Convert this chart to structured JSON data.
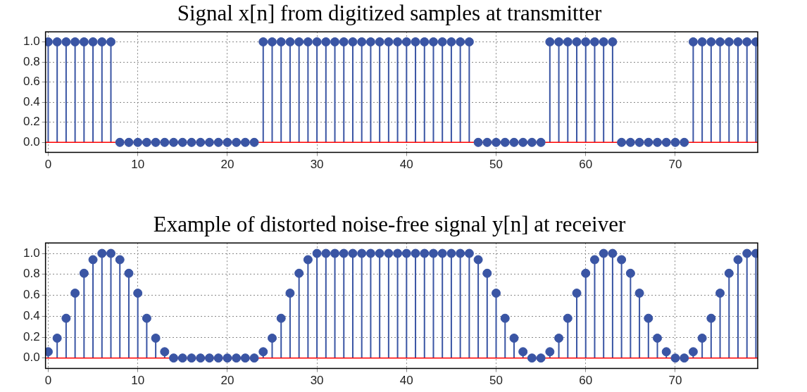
{
  "chart_data": [
    {
      "type": "lollipop",
      "title": "Signal x[n] from digitized samples at transmitter",
      "x": [
        0,
        1,
        2,
        3,
        4,
        5,
        6,
        7,
        8,
        9,
        10,
        11,
        12,
        13,
        14,
        15,
        16,
        17,
        18,
        19,
        20,
        21,
        22,
        23,
        24,
        25,
        26,
        27,
        28,
        29,
        30,
        31,
        32,
        33,
        34,
        35,
        36,
        37,
        38,
        39,
        40,
        41,
        42,
        43,
        44,
        45,
        46,
        47,
        48,
        49,
        50,
        51,
        52,
        53,
        54,
        55,
        56,
        57,
        58,
        59,
        60,
        61,
        62,
        63,
        64,
        65,
        66,
        67,
        68,
        69,
        70,
        71,
        72,
        73,
        74,
        75,
        76,
        77,
        78,
        79
      ],
      "series": [
        {
          "color": "#3a55a4",
          "values": [
            1,
            1,
            1,
            1,
            1,
            1,
            1,
            1,
            0,
            0,
            0,
            0,
            0,
            0,
            0,
            0,
            0,
            0,
            0,
            0,
            0,
            0,
            0,
            0,
            1,
            1,
            1,
            1,
            1,
            1,
            1,
            1,
            1,
            1,
            1,
            1,
            1,
            1,
            1,
            1,
            1,
            1,
            1,
            1,
            1,
            1,
            1,
            1,
            0,
            0,
            0,
            0,
            0,
            0,
            0,
            0,
            1,
            1,
            1,
            1,
            1,
            1,
            1,
            1,
            0,
            0,
            0,
            0,
            0,
            0,
            0,
            0,
            1,
            1,
            1,
            1,
            1,
            1,
            1,
            1
          ]
        }
      ],
      "xlim": [
        -0.3,
        79.2
      ],
      "ylim": [
        -0.1,
        1.1
      ],
      "xticks": [
        0,
        10,
        20,
        30,
        40,
        50,
        60,
        70
      ],
      "yticks": [
        {
          "value": 0,
          "label": "0.0"
        },
        {
          "value": 0.2,
          "label": "0.2"
        },
        {
          "value": 0.4,
          "label": "0.4"
        },
        {
          "value": 0.6,
          "label": "0.6"
        },
        {
          "value": 0.8,
          "label": "0.8"
        },
        {
          "value": 1,
          "label": "1.0"
        }
      ],
      "grid": true,
      "legend": false,
      "marker": "circle",
      "ref_lines": [
        {
          "axis": "y",
          "value": 0,
          "color": "#ff0000"
        }
      ]
    },
    {
      "type": "lollipop",
      "title": "Example of distorted noise-free signal y[n] at receiver",
      "x": [
        0,
        1,
        2,
        3,
        4,
        5,
        6,
        7,
        8,
        9,
        10,
        11,
        12,
        13,
        14,
        15,
        16,
        17,
        18,
        19,
        20,
        21,
        22,
        23,
        24,
        25,
        26,
        27,
        28,
        29,
        30,
        31,
        32,
        33,
        34,
        35,
        36,
        37,
        38,
        39,
        40,
        41,
        42,
        43,
        44,
        45,
        46,
        47,
        48,
        49,
        50,
        51,
        52,
        53,
        54,
        55,
        56,
        57,
        58,
        59,
        60,
        61,
        62,
        63,
        64,
        65,
        66,
        67,
        68,
        69,
        70,
        71,
        72,
        73,
        74,
        75,
        76,
        77,
        78,
        79
      ],
      "series": [
        {
          "color": "#3a55a4",
          "values": [
            0.06,
            0.19,
            0.38,
            0.62,
            0.81,
            0.94,
            1,
            1,
            0.94,
            0.81,
            0.62,
            0.38,
            0.19,
            0.06,
            0,
            0,
            0,
            0,
            0,
            0,
            0,
            0,
            0,
            0,
            0.06,
            0.19,
            0.38,
            0.62,
            0.81,
            0.94,
            1,
            1,
            1,
            1,
            1,
            1,
            1,
            1,
            1,
            1,
            1,
            1,
            1,
            1,
            1,
            1,
            1,
            1,
            0.94,
            0.81,
            0.62,
            0.38,
            0.19,
            0.06,
            0,
            0,
            0.06,
            0.19,
            0.38,
            0.62,
            0.81,
            0.94,
            1,
            1,
            0.94,
            0.81,
            0.62,
            0.38,
            0.19,
            0.06,
            0,
            0,
            0.06,
            0.19,
            0.38,
            0.62,
            0.81,
            0.94,
            1,
            1
          ]
        }
      ],
      "xlim": [
        -0.3,
        79.2
      ],
      "ylim": [
        -0.1,
        1.1
      ],
      "xticks": [
        0,
        10,
        20,
        30,
        40,
        50,
        60,
        70
      ],
      "yticks": [
        {
          "value": 0,
          "label": "0.0"
        },
        {
          "value": 0.2,
          "label": "0.2"
        },
        {
          "value": 0.4,
          "label": "0.4"
        },
        {
          "value": 0.6,
          "label": "0.6"
        },
        {
          "value": 0.8,
          "label": "0.8"
        },
        {
          "value": 1,
          "label": "1.0"
        }
      ],
      "grid": true,
      "legend": false,
      "marker": "circle",
      "ref_lines": [
        {
          "axis": "y",
          "value": 0,
          "color": "#ff0000"
        }
      ]
    }
  ]
}
